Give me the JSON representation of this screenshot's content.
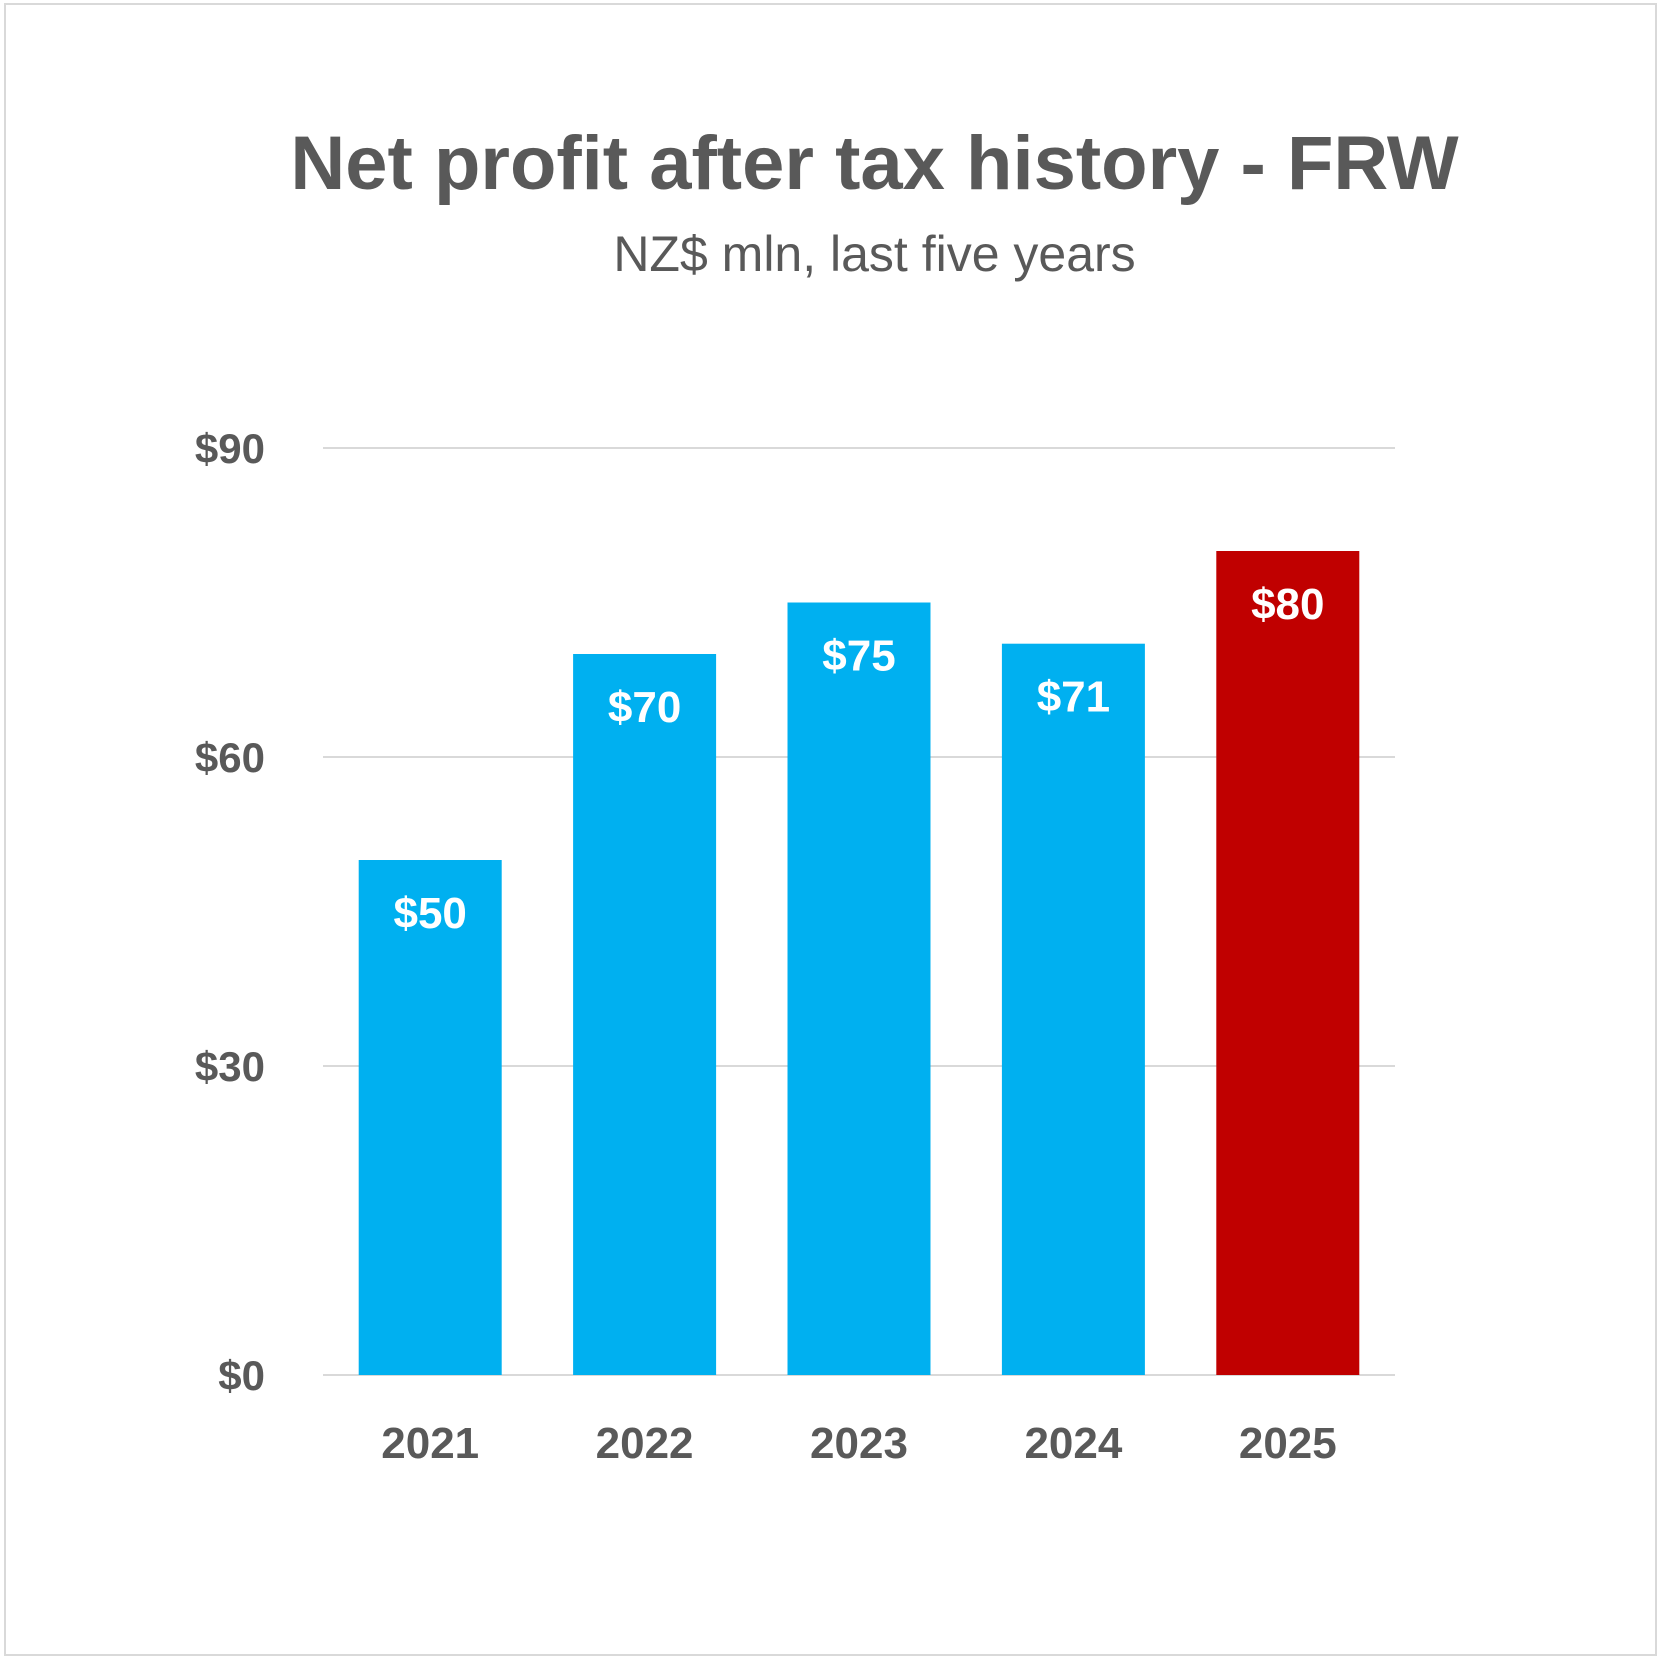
{
  "chart_data": {
    "type": "bar",
    "title": "Net profit after tax history - FRW",
    "subtitle": "NZ$ mln, last five years",
    "categories": [
      "2021",
      "2022",
      "2023",
      "2024",
      "2025"
    ],
    "values": [
      50,
      70,
      75,
      71,
      80
    ],
    "data_labels": [
      "$50",
      "$70",
      "$75",
      "$71",
      "$80"
    ],
    "bar_colors": [
      "#00B0F0",
      "#00B0F0",
      "#00B0F0",
      "#00B0F0",
      "#C00000"
    ],
    "ylim": [
      0,
      90
    ],
    "yticks": [
      0,
      30,
      60,
      90
    ],
    "ytick_labels": [
      "$0",
      "$30",
      "$60",
      "$90"
    ],
    "xlabel": "",
    "ylabel": "",
    "grid": true,
    "legend": "none"
  }
}
